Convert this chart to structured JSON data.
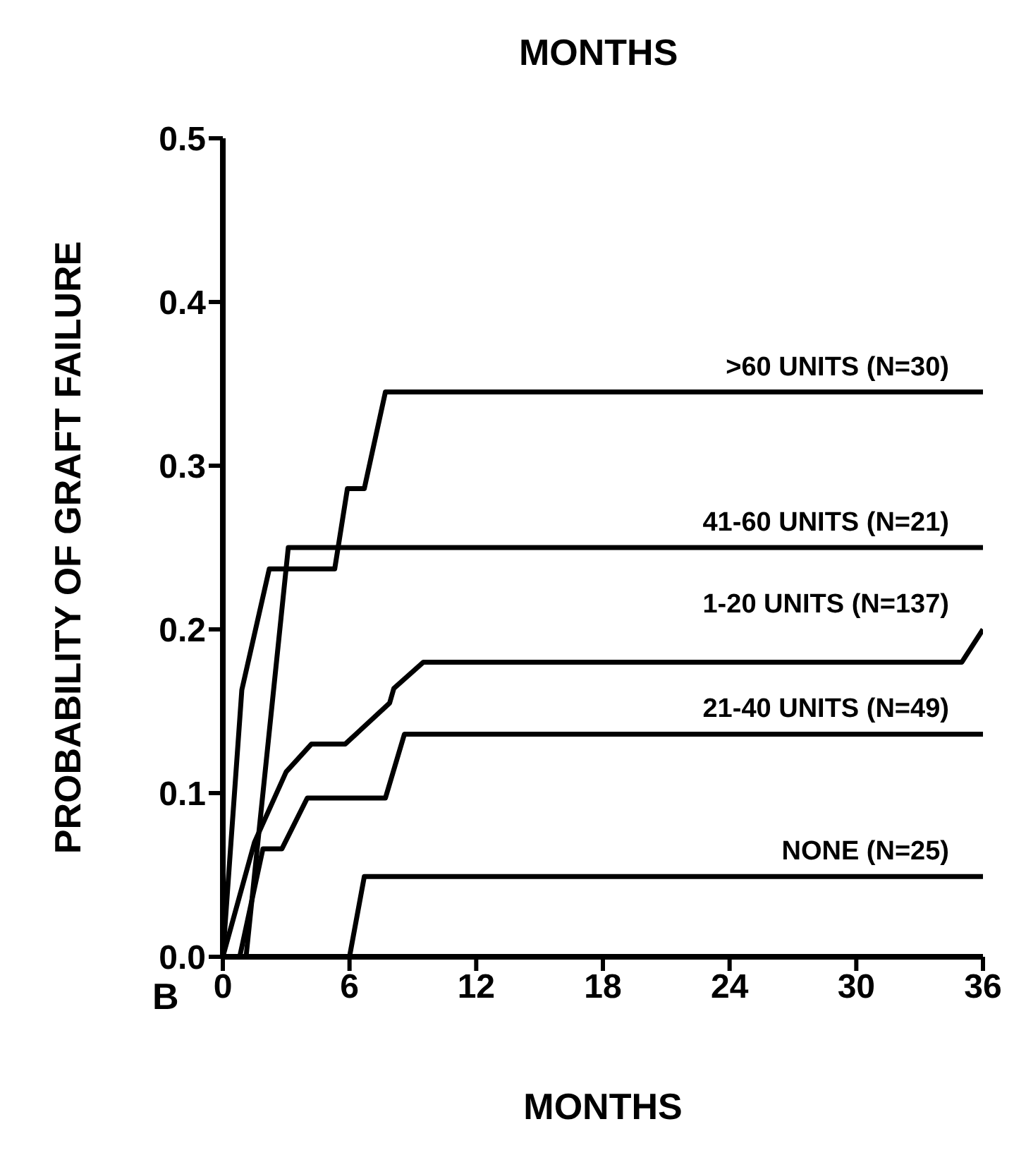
{
  "chart_data": {
    "type": "line",
    "xlabel": "MONTHS",
    "ylabel": "PROBABILITY OF GRAFT FAILURE",
    "annotations": [
      "MONTHS",
      "B"
    ],
    "xlim": [
      0,
      36
    ],
    "xticks": [
      0,
      6,
      12,
      18,
      24,
      30,
      36
    ],
    "ylim": [
      0,
      0.5
    ],
    "yticks": [
      {
        "value": 0,
        "label": "0.0"
      },
      {
        "value": 0.1,
        "label": "0.1"
      },
      {
        "value": 0.2,
        "label": "0.2"
      },
      {
        "value": 0.3,
        "label": "0.3"
      },
      {
        "value": 0.4,
        "label": "0.4"
      },
      {
        "value": 0.5,
        "label": "0.5"
      }
    ],
    "grid": false,
    "marker": "none",
    "line_style": "solid",
    "series": [
      {
        "name": ">60 UNITS (N=30)",
        "color": "#000000",
        "x": [
          0,
          0.9,
          2.2,
          5.3,
          5.9,
          6.7,
          7.7,
          36
        ],
        "values": [
          0,
          0.163,
          0.237,
          0.237,
          0.286,
          0.286,
          0.345,
          0.345
        ]
      },
      {
        "name": "41-60 UNITS (N=21)",
        "color": "#000000",
        "x": [
          1.1,
          3.1,
          36
        ],
        "values": [
          0,
          0.25,
          0.25
        ]
      },
      {
        "name": "1-20 UNITS (N=137)",
        "color": "#000000",
        "x": [
          0,
          1.5,
          3,
          4.2,
          5.8,
          7.9,
          8.1,
          9.5,
          35,
          36
        ],
        "values": [
          0,
          0.07,
          0.113,
          0.13,
          0.13,
          0.155,
          0.164,
          0.18,
          0.18,
          0.2
        ]
      },
      {
        "name": "21-40 UNITS (N=49)",
        "color": "#000000",
        "x": [
          0.8,
          1.9,
          2.8,
          4,
          7.7,
          8.6,
          36
        ],
        "values": [
          0,
          0.066,
          0.066,
          0.097,
          0.097,
          0.136,
          0.136
        ]
      },
      {
        "name": "NONE (N=25)",
        "color": "#000000",
        "x": [
          6,
          6.7,
          36
        ],
        "values": [
          0,
          0.049,
          0.049
        ]
      }
    ]
  }
}
